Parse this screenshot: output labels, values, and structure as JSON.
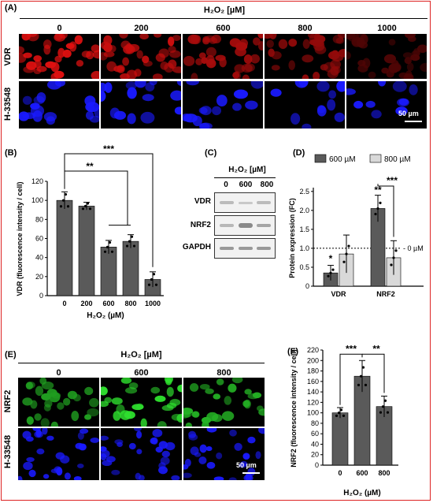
{
  "panels": {
    "A": "(A)",
    "B": "(B)",
    "C": "(C)",
    "D": "(D)",
    "E": "(E)",
    "F": "(F)"
  },
  "panelA": {
    "header": "H₂O₂ [µM]",
    "concentrations": [
      "0",
      "200",
      "600",
      "800",
      "1000"
    ],
    "rows": [
      "VDR",
      "H-33548"
    ],
    "scalebar": "50 µm"
  },
  "panelC": {
    "header": "H₂O₂ [µM]",
    "concentrations": [
      "0",
      "600",
      "800"
    ],
    "rows": [
      "VDR",
      "NRF2",
      "GAPDH"
    ]
  },
  "panelE": {
    "header": "H₂O₂ [µM]",
    "concentrations": [
      "0",
      "600",
      "800"
    ],
    "rows": [
      "NRF2",
      "H-33548"
    ],
    "scalebar": "50 µm"
  },
  "colors": {
    "frame": "#d22222",
    "bar_dark": "#5a5a5a",
    "bar_light": "#d9d9d9",
    "vdr_red": "#e01010",
    "dapi_blue": "#1a1aff",
    "nrf2_green": "#2ee02e"
  },
  "chart_data": [
    {
      "id": "B",
      "type": "bar",
      "categories": [
        "0",
        "200",
        "600",
        "800",
        "1000"
      ],
      "values": [
        100,
        94,
        51,
        57,
        17
      ],
      "errors": [
        9,
        4,
        7,
        7,
        8
      ],
      "ylabel": "VDR (fluorescence intensity / cell)",
      "xlabel": "H₂O₂ (µM)",
      "ylim": [
        0,
        120
      ],
      "yticks": [
        "0",
        "20",
        "40",
        "60",
        "80",
        "100",
        "120"
      ],
      "significance": [
        "***",
        "**"
      ]
    },
    {
      "id": "D",
      "type": "bar",
      "categories": [
        "VDR",
        "NRF2"
      ],
      "series": [
        {
          "name": "600 µM",
          "values": [
            0.35,
            2.05
          ],
          "errors": [
            0.2,
            0.35
          ]
        },
        {
          "name": "800 µM",
          "values": [
            0.85,
            0.75
          ],
          "errors": [
            0.5,
            0.45
          ]
        }
      ],
      "ylabel": "Protein expression (FC)",
      "ylim": [
        0,
        2.6
      ],
      "yticks": [
        "0",
        "0.5",
        "1.0",
        "1.5",
        "2.0",
        "2.5"
      ],
      "reference_label": "0 µM",
      "significance": [
        "*",
        "**",
        "***"
      ],
      "legend": "top"
    },
    {
      "id": "F",
      "type": "bar",
      "categories": [
        "0",
        "600",
        "800"
      ],
      "values": [
        100,
        170,
        112
      ],
      "errors": [
        10,
        30,
        20
      ],
      "ylabel": "NRF2 (fluorescence intensity / cell)",
      "xlabel": "H₂O₂ (µM)",
      "ylim": [
        0,
        220
      ],
      "yticks": [
        "0",
        "20",
        "40",
        "60",
        "80",
        "100",
        "120",
        "140",
        "160",
        "180",
        "200",
        "220"
      ],
      "significance": [
        "***",
        "**"
      ]
    }
  ]
}
